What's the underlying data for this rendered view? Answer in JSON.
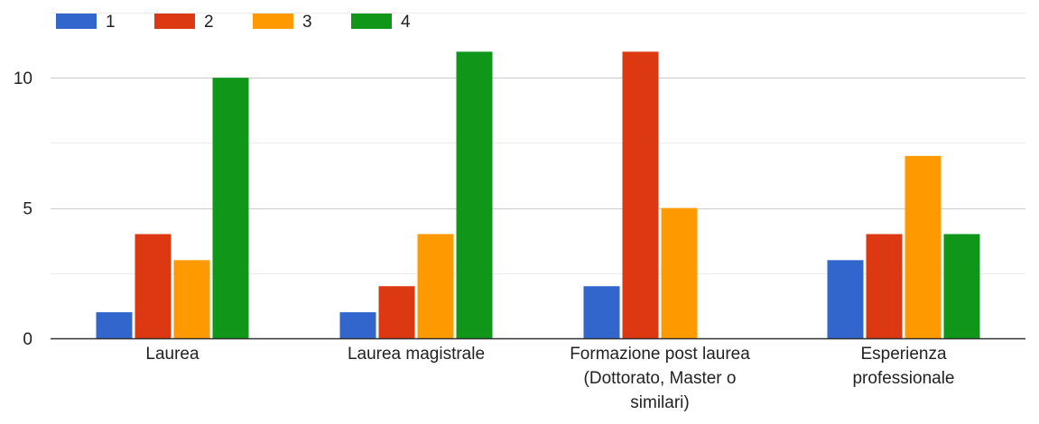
{
  "chart_data": {
    "type": "bar",
    "title": "",
    "xlabel": "",
    "ylabel": "",
    "categories": [
      [
        "Laurea"
      ],
      [
        "Laurea magistrale"
      ],
      [
        "Formazione post laurea",
        "(Dottorato, Master o",
        "similari)"
      ],
      [
        "Esperienza",
        "professionale"
      ]
    ],
    "series": [
      {
        "name": "1",
        "color": "#3366cc",
        "values": [
          1,
          1,
          2,
          3
        ]
      },
      {
        "name": "2",
        "color": "#dc3912",
        "values": [
          4,
          2,
          11,
          4
        ]
      },
      {
        "name": "3",
        "color": "#ff9900",
        "values": [
          3,
          4,
          5,
          7
        ]
      },
      {
        "name": "4",
        "color": "#109618",
        "values": [
          10,
          11,
          0,
          4
        ]
      }
    ],
    "ylim": [
      0,
      12.5
    ],
    "yticks": [
      0,
      5,
      10
    ],
    "grid": true,
    "legend_position": "top-left"
  }
}
